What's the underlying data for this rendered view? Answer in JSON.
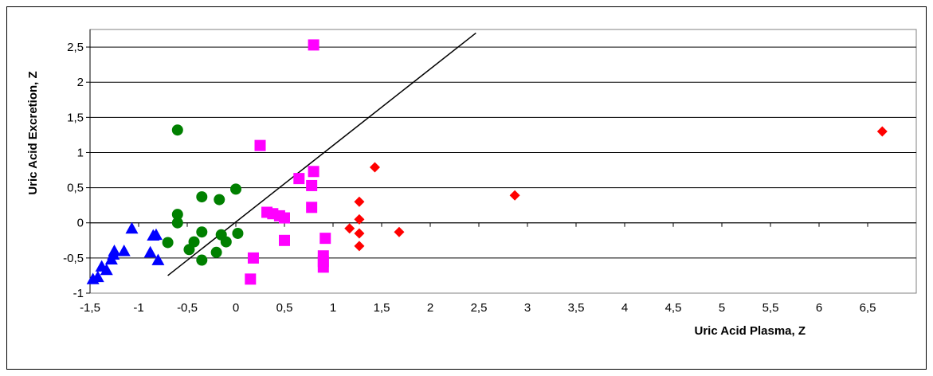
{
  "chart_data": {
    "type": "scatter",
    "title": "",
    "xlabel": "Uric Acid Plasma, Z",
    "ylabel": "Uric Acid Excretion, Z",
    "xlim": [
      -1.5,
      7.0
    ],
    "ylim": [
      -1.0,
      2.75
    ],
    "x_ticks": [
      "-1,5",
      "-1",
      "-0,5",
      "0",
      "0,5",
      "1",
      "1,5",
      "2",
      "2,5",
      "3",
      "3,5",
      "4",
      "4,5",
      "5",
      "5,5",
      "6",
      "6,5"
    ],
    "y_ticks": [
      "-1",
      "-0,5",
      "0",
      "0,5",
      "1",
      "1,5",
      "2",
      "2,5"
    ],
    "grid": "horizontal",
    "legend": "none",
    "series": [
      {
        "marker": "triangle",
        "color": "#0000ff",
        "points": [
          {
            "x": -1.47,
            "y": -0.8
          },
          {
            "x": -1.42,
            "y": -0.77
          },
          {
            "x": -1.38,
            "y": -0.62
          },
          {
            "x": -1.33,
            "y": -0.67
          },
          {
            "x": -1.28,
            "y": -0.52
          },
          {
            "x": -1.26,
            "y": -0.45
          },
          {
            "x": -1.25,
            "y": -0.4
          },
          {
            "x": -1.15,
            "y": -0.4
          },
          {
            "x": -1.07,
            "y": -0.08
          },
          {
            "x": -0.88,
            "y": -0.42
          },
          {
            "x": -0.85,
            "y": -0.18
          },
          {
            "x": -0.82,
            "y": -0.17
          },
          {
            "x": -0.8,
            "y": -0.53
          }
        ]
      },
      {
        "marker": "circle",
        "color": "#008000",
        "points": [
          {
            "x": -0.6,
            "y": 1.32
          },
          {
            "x": -0.7,
            "y": -0.28
          },
          {
            "x": -0.6,
            "y": 0.12
          },
          {
            "x": -0.6,
            "y": 0.0
          },
          {
            "x": -0.48,
            "y": -0.38
          },
          {
            "x": -0.43,
            "y": -0.27
          },
          {
            "x": -0.35,
            "y": 0.37
          },
          {
            "x": -0.35,
            "y": -0.13
          },
          {
            "x": -0.35,
            "y": -0.53
          },
          {
            "x": -0.2,
            "y": -0.42
          },
          {
            "x": -0.17,
            "y": 0.33
          },
          {
            "x": -0.15,
            "y": -0.17
          },
          {
            "x": -0.1,
            "y": -0.27
          },
          {
            "x": 0.0,
            "y": 0.48
          },
          {
            "x": 0.02,
            "y": -0.15
          }
        ]
      },
      {
        "marker": "square",
        "color": "#ff00ff",
        "points": [
          {
            "x": 0.8,
            "y": 2.53
          },
          {
            "x": 0.25,
            "y": 1.1
          },
          {
            "x": 0.8,
            "y": 0.73
          },
          {
            "x": 0.65,
            "y": 0.63
          },
          {
            "x": 0.78,
            "y": 0.53
          },
          {
            "x": 0.78,
            "y": 0.22
          },
          {
            "x": 0.32,
            "y": 0.15
          },
          {
            "x": 0.38,
            "y": 0.13
          },
          {
            "x": 0.45,
            "y": 0.1
          },
          {
            "x": 0.5,
            "y": 0.07
          },
          {
            "x": 0.5,
            "y": -0.25
          },
          {
            "x": 0.92,
            "y": -0.22
          },
          {
            "x": 0.18,
            "y": -0.5
          },
          {
            "x": 0.9,
            "y": -0.47
          },
          {
            "x": 0.9,
            "y": -0.55
          },
          {
            "x": 0.9,
            "y": -0.63
          },
          {
            "x": 0.15,
            "y": -0.8
          }
        ]
      },
      {
        "marker": "diamond",
        "color": "#ff0000",
        "points": [
          {
            "x": 6.65,
            "y": 1.3
          },
          {
            "x": 1.43,
            "y": 0.79
          },
          {
            "x": 2.87,
            "y": 0.39
          },
          {
            "x": 1.27,
            "y": 0.3
          },
          {
            "x": 1.27,
            "y": 0.05
          },
          {
            "x": 1.17,
            "y": -0.08
          },
          {
            "x": 1.27,
            "y": -0.15
          },
          {
            "x": 1.68,
            "y": -0.13
          },
          {
            "x": 1.27,
            "y": -0.33
          }
        ]
      }
    ],
    "lines": [
      {
        "color": "#000000",
        "from": {
          "x": -0.7,
          "y": -0.75
        },
        "to": {
          "x": 2.47,
          "y": 2.7
        }
      }
    ]
  }
}
